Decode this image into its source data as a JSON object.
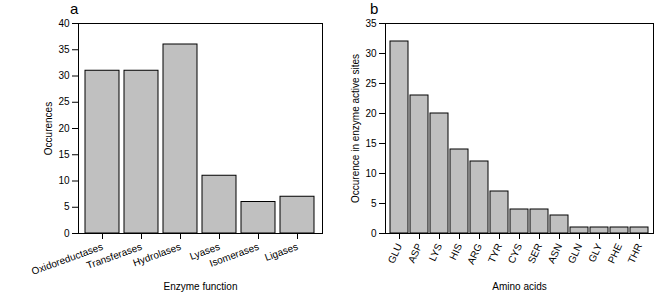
{
  "chart_data": [
    {
      "type": "bar",
      "title": "a",
      "x_label": "Enzyme function",
      "y_label": "Occurences",
      "categories": [
        "Oxidoreductases",
        "Transferases",
        "Hydrolases",
        "Lyases",
        "Isomerases",
        "Ligases"
      ],
      "values": [
        31,
        31,
        36,
        11,
        6,
        7
      ],
      "color": "#c0c0c0",
      "ylim": [
        0,
        40
      ],
      "yticks": [
        0,
        5,
        10,
        15,
        20,
        25,
        30,
        35,
        40
      ],
      "grid": false
    },
    {
      "type": "bar",
      "title": "b",
      "x_label": "Amino acids",
      "y_label": "Occurence in enzyme active sites",
      "categories": [
        "GLU",
        "ASP",
        "LYS",
        "HIS",
        "ARG",
        "TYR",
        "CYS",
        "SER",
        "ASN",
        "GLN",
        "GLY",
        "PHE",
        "THR"
      ],
      "values": [
        32,
        23,
        20,
        14,
        12,
        7,
        4,
        4,
        3,
        1,
        1,
        1,
        1
      ],
      "color": "#c0c0c0",
      "ylim": [
        0,
        35
      ],
      "yticks": [
        0,
        5,
        10,
        15,
        20,
        25,
        30,
        35
      ],
      "grid": false
    }
  ]
}
